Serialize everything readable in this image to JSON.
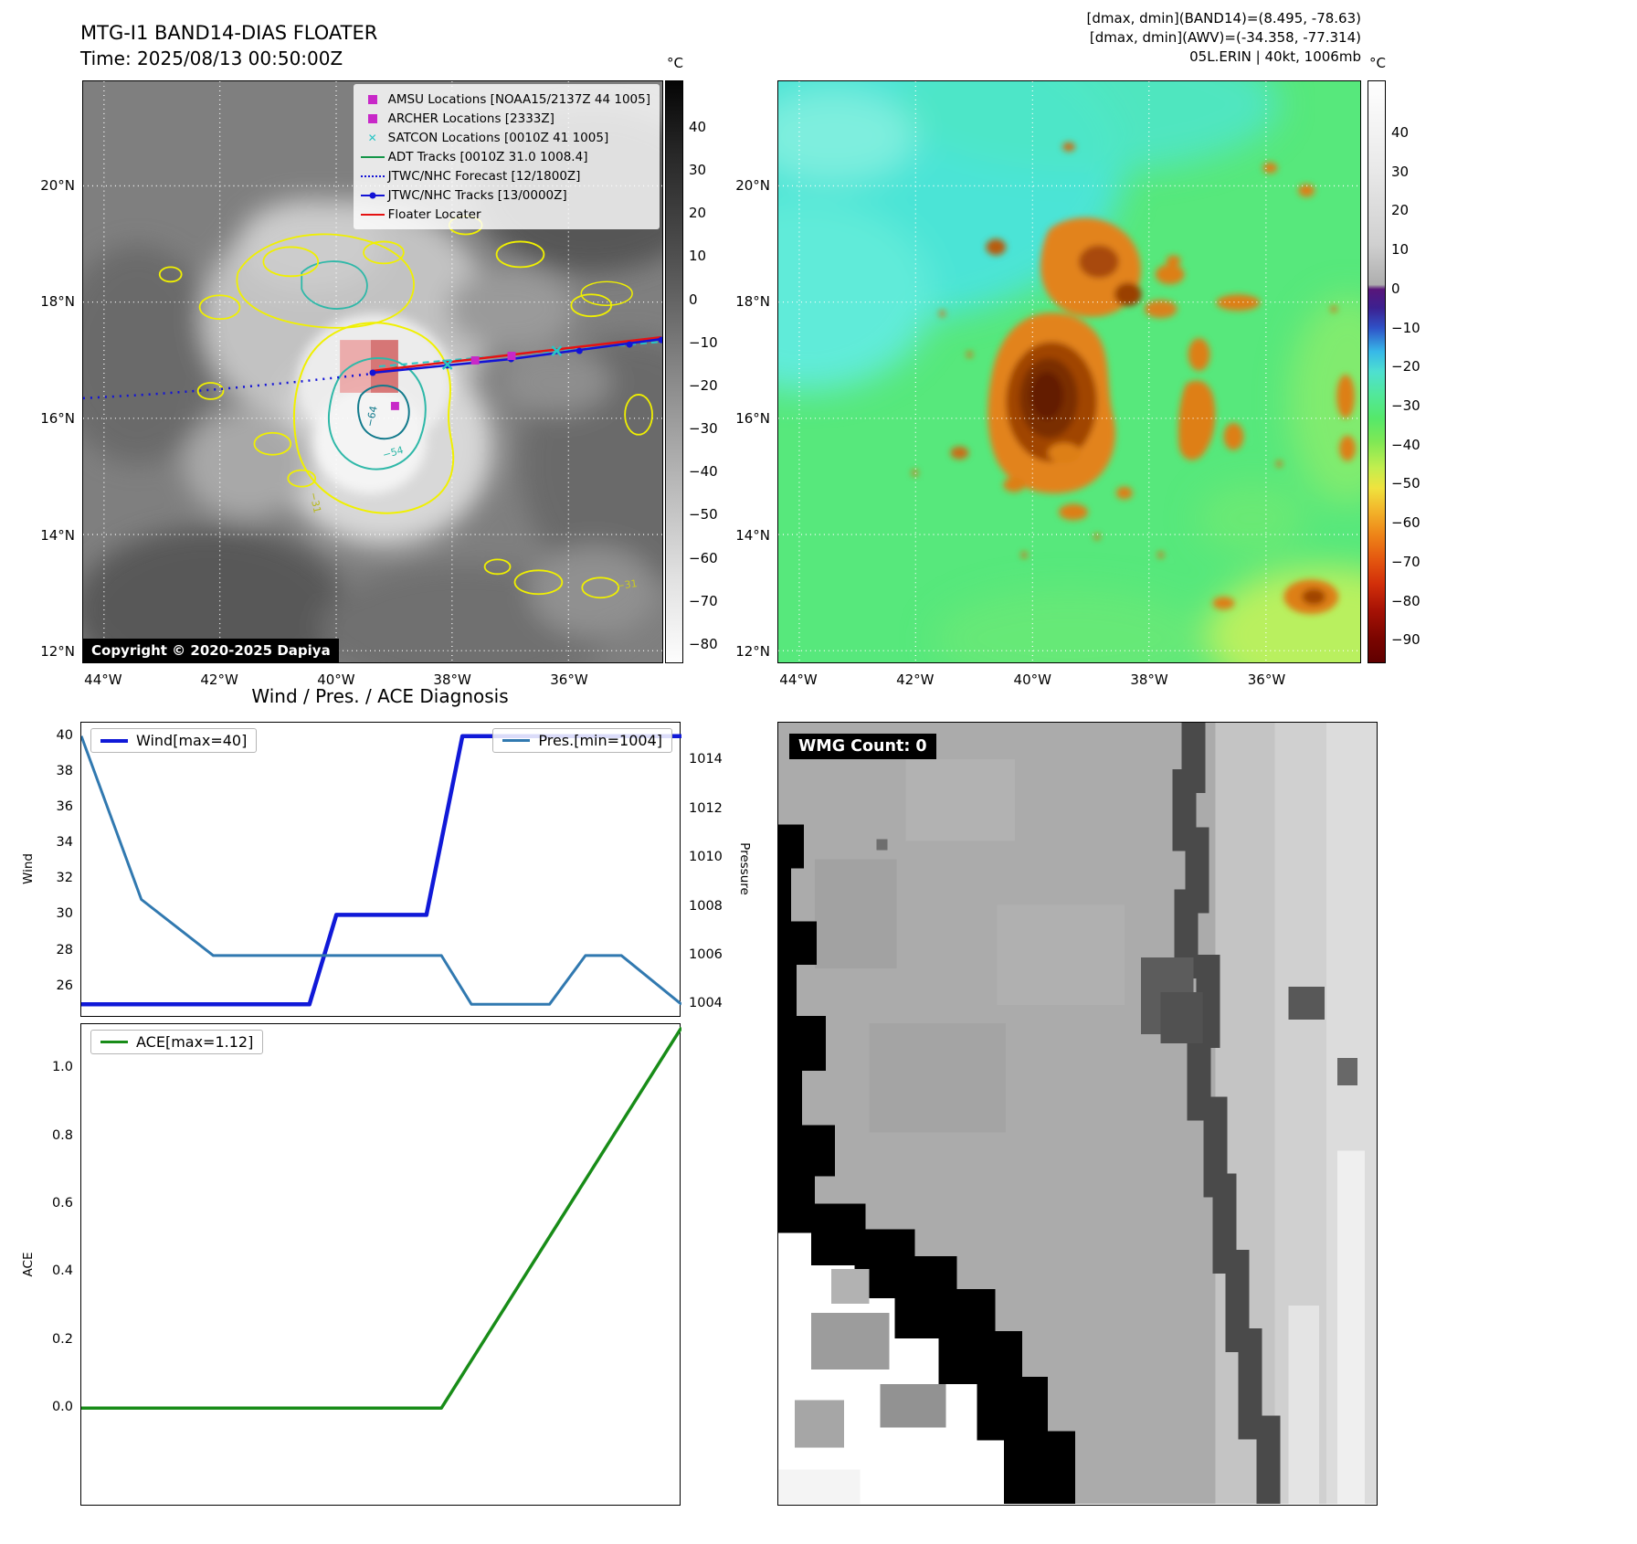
{
  "ir_panel": {
    "title": "MTG-I1 BAND14-DIAS FLOATER",
    "subtitle": "Time: 2025/08/13 00:50:00Z",
    "copyright": "Copyright © 2020-2025 Dapiya",
    "lat_ticks": [
      "20°N",
      "18°N",
      "16°N",
      "14°N",
      "12°N"
    ],
    "lon_ticks": [
      "44°W",
      "42°W",
      "40°W",
      "38°W",
      "36°W"
    ],
    "colorbar_unit": "°C",
    "colorbar_ticks": [
      "40",
      "30",
      "20",
      "10",
      "0",
      "−10",
      "−20",
      "−30",
      "−40",
      "−50",
      "−60",
      "−70",
      "−80"
    ],
    "contour_labels": [
      "−64",
      "−54",
      "−31",
      "−31"
    ],
    "legend": [
      {
        "label": "AMSU Locations [NOAA15/2137Z 44 1005]",
        "marker": "square",
        "color": "#c828c8"
      },
      {
        "label": "ARCHER Locations [2333Z]",
        "marker": "square",
        "color": "#c828c8"
      },
      {
        "label": "SATCON Locations [0010Z 41 1005]",
        "marker": "x",
        "color": "#29c5c5"
      },
      {
        "label": "ADT Tracks [0010Z 31.0 1008.4]",
        "marker": "line",
        "color": "#149648"
      },
      {
        "label": "JTWC/NHC Forecast [12/1800Z]",
        "marker": "dotted",
        "color": "#1313d6"
      },
      {
        "label": "JTWC/NHC Tracks [13/0000Z]",
        "marker": "line-dot",
        "color": "#1313d6"
      },
      {
        "label": "Floater Locater",
        "marker": "line",
        "color": "#e51212"
      }
    ]
  },
  "awv_panel": {
    "header_lines": [
      "[dmax, dmin](BAND14)=(8.495, -78.63)",
      "[dmax, dmin](AWV)=(-34.358, -77.314)",
      "05L.ERIN | 40kt, 1006mb"
    ],
    "lat_ticks": [
      "20°N",
      "18°N",
      "16°N",
      "14°N",
      "12°N"
    ],
    "lon_ticks": [
      "44°W",
      "42°W",
      "40°W",
      "38°W",
      "36°W"
    ],
    "colorbar_unit": "°C",
    "colorbar_ticks": [
      "40",
      "30",
      "20",
      "10",
      "0",
      "−10",
      "−20",
      "−30",
      "−40",
      "−50",
      "−60",
      "−70",
      "−80",
      "−90"
    ]
  },
  "wmg_panel": {
    "label": "WMG Count: 0"
  },
  "chart_data": [
    {
      "type": "line",
      "name": "wind-pressure-chart",
      "title": "Wind / Pres. / ACE Diagnosis",
      "ylabel_left": "Wind",
      "ylabel_right": "Pressure",
      "ylim_left": [
        24.25,
        40.75
      ],
      "ylim_right": [
        1003.45,
        1015.55
      ],
      "yticks_left": {
        "values": [
          26,
          28,
          30,
          32,
          34,
          36,
          38,
          40
        ],
        "labels": [
          "26",
          "28",
          "30",
          "32",
          "34",
          "36",
          "38",
          "40"
        ]
      },
      "yticks_right": {
        "values": [
          1004,
          1006,
          1008,
          1010,
          1012,
          1014
        ],
        "labels": [
          "1004",
          "1006",
          "1008",
          "1010",
          "1012",
          "1014"
        ]
      },
      "series": [
        {
          "name": "Wind[max=40]",
          "color": "#1019d8",
          "axis": "left",
          "width": 4.5,
          "points": [
            [
              0,
              25
            ],
            [
              0.38,
              25
            ],
            [
              0.425,
              30
            ],
            [
              0.575,
              30
            ],
            [
              0.635,
              40
            ],
            [
              1,
              40
            ]
          ]
        },
        {
          "name": "Pres.[min=1004]",
          "color": "#3179b0",
          "axis": "right",
          "width": 3,
          "points": [
            [
              0,
              1015
            ],
            [
              0.1,
              1008.3
            ],
            [
              0.22,
              1006
            ],
            [
              0.6,
              1006
            ],
            [
              0.65,
              1004
            ],
            [
              0.78,
              1004
            ],
            [
              0.84,
              1006
            ],
            [
              0.9,
              1006
            ],
            [
              1,
              1004
            ]
          ]
        }
      ],
      "legend_positions": [
        "upper-left",
        "upper-right"
      ],
      "grid": false
    },
    {
      "type": "line",
      "name": "ace-chart",
      "ylabel_left": "ACE",
      "ylim_left": [
        -0.29,
        1.13
      ],
      "yticks_left": {
        "values": [
          0,
          0.2,
          0.4,
          0.6,
          0.8,
          1.0
        ],
        "labels": [
          "0.0",
          "0.2",
          "0.4",
          "0.6",
          "0.8",
          "1.0"
        ]
      },
      "series": [
        {
          "name": "ACE[max=1.12]",
          "color": "#188c18",
          "axis": "left",
          "width": 3.5,
          "points": [
            [
              0,
              0
            ],
            [
              0.6,
              0
            ],
            [
              1,
              1.12
            ]
          ]
        }
      ],
      "legend_positions": [
        "upper-left"
      ],
      "grid": false
    }
  ]
}
